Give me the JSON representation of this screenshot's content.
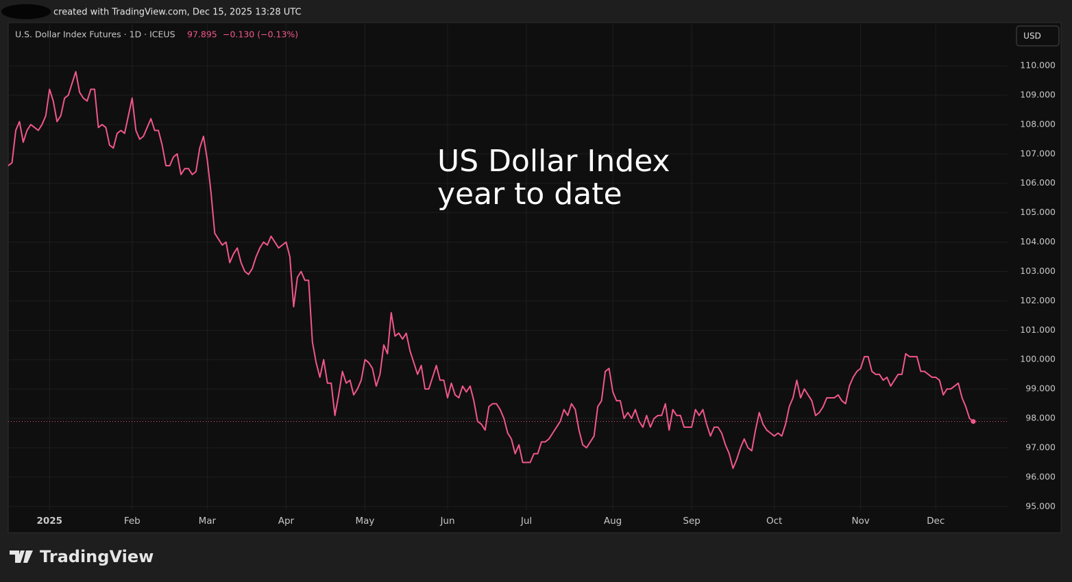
{
  "chart_data": {
    "type": "line",
    "watermark": "created with TradingView.com, Dec 15, 2025 13:28 UTC",
    "symbol": "U.S. Dollar Index Futures · 1D · ICEUS",
    "price": "97.895",
    "change": "−0.130 (−0.13%)",
    "currency": "USD",
    "annotation": [
      "US Dollar Index",
      "year to date"
    ],
    "logo": "TradingView",
    "color": "#f2578b",
    "grid": true,
    "ylim": [
      94.11,
      111.47
    ],
    "yticks": [
      {
        "value": 95,
        "label": "95.000"
      },
      {
        "value": 96,
        "label": "96.000"
      },
      {
        "value": 97,
        "label": "97.000"
      },
      {
        "value": 98,
        "label": "98.000"
      },
      {
        "value": 99,
        "label": "99.000"
      },
      {
        "value": 100,
        "label": "100.000"
      },
      {
        "value": 101,
        "label": "101.000"
      },
      {
        "value": 102,
        "label": "102.000"
      },
      {
        "value": 103,
        "label": "103.000"
      },
      {
        "value": 104,
        "label": "104.000"
      },
      {
        "value": 105,
        "label": "105.000"
      },
      {
        "value": 106,
        "label": "106.000"
      },
      {
        "value": 107,
        "label": "107.000"
      },
      {
        "value": 108,
        "label": "108.000"
      },
      {
        "value": 109,
        "label": "109.000"
      },
      {
        "value": 110,
        "label": "110.000"
      }
    ],
    "categories": [
      null,
      null,
      null,
      null,
      null,
      null,
      null,
      null,
      null,
      null,
      null,
      "2025",
      null,
      null,
      null,
      null,
      null,
      null,
      null,
      null,
      null,
      null,
      null,
      null,
      null,
      null,
      null,
      null,
      null,
      null,
      null,
      null,
      null,
      "Feb",
      null,
      null,
      null,
      null,
      null,
      null,
      null,
      null,
      null,
      null,
      null,
      null,
      null,
      null,
      null,
      null,
      null,
      null,
      null,
      "Mar",
      null,
      null,
      null,
      null,
      null,
      null,
      null,
      null,
      null,
      null,
      null,
      null,
      null,
      null,
      null,
      null,
      null,
      null,
      null,
      null,
      "Apr",
      null,
      null,
      null,
      null,
      null,
      null,
      null,
      null,
      null,
      null,
      null,
      null,
      null,
      null,
      null,
      null,
      null,
      null,
      null,
      null,
      "May",
      null,
      null,
      null,
      null,
      null,
      null,
      null,
      null,
      null,
      null,
      null,
      null,
      null,
      null,
      null,
      null,
      null,
      null,
      null,
      null,
      null,
      "Jun",
      null,
      null,
      null,
      null,
      null,
      null,
      null,
      null,
      null,
      null,
      null,
      null,
      null,
      null,
      null,
      null,
      null,
      null,
      null,
      null,
      "Jul",
      null,
      null,
      null,
      null,
      null,
      null,
      null,
      null,
      null,
      null,
      null,
      null,
      null,
      null,
      null,
      null,
      null,
      null,
      null,
      null,
      null,
      null,
      "Aug",
      null,
      null,
      null,
      null,
      null,
      null,
      null,
      null,
      null,
      null,
      null,
      null,
      null,
      null,
      null,
      null,
      null,
      null,
      null,
      null,
      "Sep",
      null,
      null,
      null,
      null,
      null,
      null,
      null,
      null,
      null,
      null,
      null,
      null,
      null,
      null,
      null,
      null,
      null,
      null,
      null,
      null,
      null,
      "Oct",
      null,
      null,
      null,
      null,
      null,
      null,
      null,
      null,
      null,
      null,
      null,
      null,
      null,
      null,
      null,
      null,
      null,
      null,
      null,
      null,
      null,
      null,
      "Nov",
      null,
      null,
      null,
      null,
      null,
      null,
      null,
      null,
      null,
      null,
      null,
      null,
      null,
      null,
      null,
      null,
      null,
      null,
      null,
      "Dec",
      null,
      null,
      null,
      null,
      null,
      null,
      null,
      null,
      null,
      null
    ],
    "values": [
      106.6,
      106.7,
      107.8,
      108.1,
      107.4,
      107.8,
      108.0,
      107.9,
      107.8,
      108.0,
      108.3,
      109.2,
      108.8,
      108.1,
      108.3,
      108.9,
      109.0,
      109.4,
      109.8,
      109.1,
      108.9,
      108.8,
      109.2,
      109.2,
      107.9,
      108.0,
      107.9,
      107.3,
      107.2,
      107.7,
      107.8,
      107.7,
      108.3,
      108.9,
      107.8,
      107.5,
      107.6,
      107.9,
      108.2,
      107.8,
      107.8,
      107.3,
      106.6,
      106.6,
      106.9,
      107.0,
      106.3,
      106.5,
      106.5,
      106.3,
      106.4,
      107.2,
      107.6,
      106.8,
      105.7,
      104.3,
      104.1,
      103.9,
      104.0,
      103.3,
      103.6,
      103.8,
      103.3,
      103.0,
      102.9,
      103.1,
      103.5,
      103.8,
      104.0,
      103.9,
      104.2,
      104.0,
      103.8,
      103.9,
      104.0,
      103.5,
      101.8,
      102.8,
      103.0,
      102.7,
      102.7,
      100.6,
      99.9,
      99.4,
      100.0,
      99.2,
      99.2,
      98.1,
      98.8,
      99.6,
      99.2,
      99.3,
      98.8,
      99.0,
      99.3,
      100.0,
      99.9,
      99.7,
      99.1,
      99.5,
      100.5,
      100.2,
      101.6,
      100.8,
      100.9,
      100.7,
      100.9,
      100.3,
      99.9,
      99.5,
      99.8,
      99.0,
      99.0,
      99.4,
      99.8,
      99.3,
      99.3,
      98.7,
      99.2,
      98.8,
      98.7,
      99.1,
      98.9,
      99.1,
      98.6,
      97.9,
      97.8,
      97.6,
      98.4,
      98.5,
      98.5,
      98.3,
      98.0,
      97.5,
      97.3,
      96.8,
      97.1,
      96.5,
      96.5,
      96.5,
      96.8,
      96.8,
      97.2,
      97.2,
      97.3,
      97.5,
      97.7,
      97.9,
      98.3,
      98.1,
      98.5,
      98.3,
      97.6,
      97.1,
      97.0,
      97.2,
      97.4,
      98.4,
      98.6,
      99.6,
      99.7,
      98.9,
      98.6,
      98.6,
      98.0,
      98.2,
      98.0,
      98.3,
      97.9,
      97.7,
      98.1,
      97.7,
      98.0,
      98.1,
      98.1,
      98.5,
      97.6,
      98.3,
      98.1,
      98.1,
      97.7,
      97.7,
      97.7,
      98.3,
      98.1,
      98.3,
      97.8,
      97.4,
      97.7,
      97.7,
      97.5,
      97.1,
      96.8,
      96.3,
      96.6,
      97.0,
      97.3,
      97.0,
      96.9,
      97.6,
      98.2,
      97.8,
      97.6,
      97.5,
      97.4,
      97.5,
      97.4,
      97.8,
      98.4,
      98.7,
      99.3,
      98.7,
      99.0,
      98.8,
      98.6,
      98.1,
      98.2,
      98.4,
      98.7,
      98.7,
      98.7,
      98.8,
      98.6,
      98.5,
      99.1,
      99.4,
      99.6,
      99.7,
      100.1,
      100.1,
      99.6,
      99.5,
      99.5,
      99.3,
      99.4,
      99.1,
      99.3,
      99.5,
      99.5,
      100.2,
      100.1,
      100.1,
      100.1,
      99.6,
      99.6,
      99.5,
      99.4,
      99.4,
      99.3,
      98.8,
      99.0,
      99.0,
      99.1,
      99.2,
      98.7,
      98.4,
      98.0,
      97.895
    ]
  }
}
